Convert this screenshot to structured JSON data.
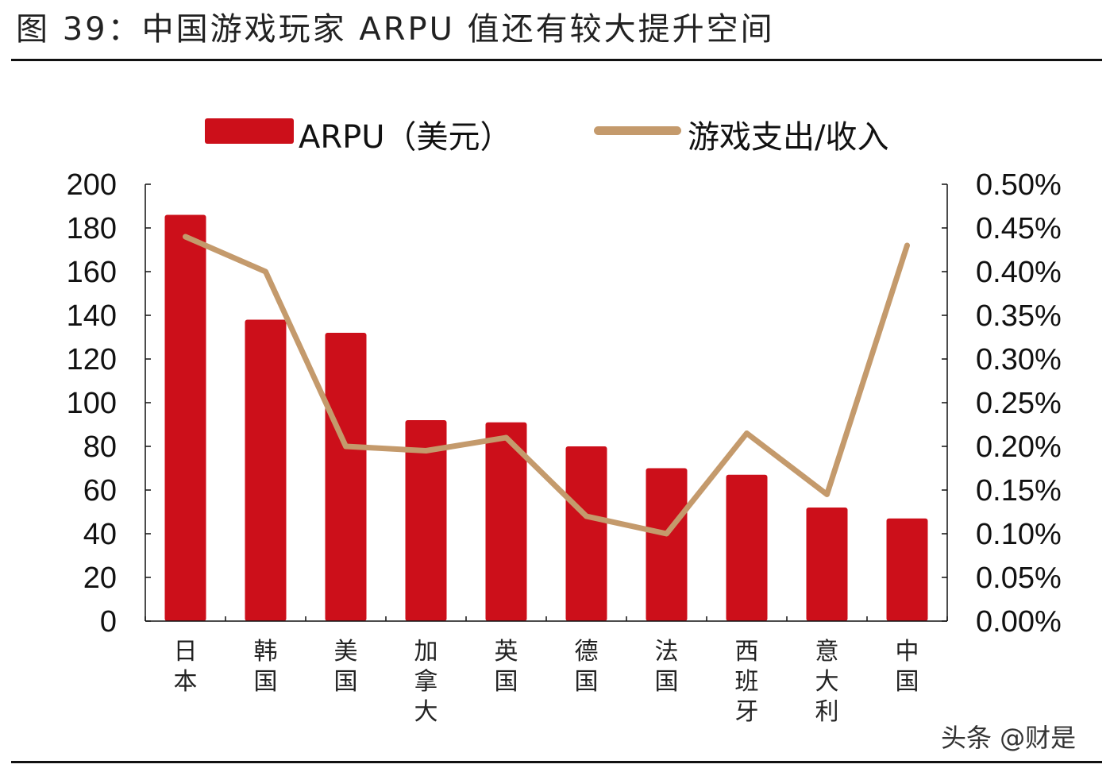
{
  "title": "图 39：中国游戏玩家 ARPU 值还有较大提升空间",
  "watermark": "头条 @财是",
  "colors": {
    "bar": "#cc0f1a",
    "line": "#c49a6c",
    "axis": "#111111"
  },
  "chart_data": {
    "type": "bar+line",
    "categories": [
      "日本",
      "韩国",
      "美国",
      "加拿大",
      "英国",
      "德国",
      "法国",
      "西班牙",
      "意大利",
      "中国"
    ],
    "series": [
      {
        "name": "ARPU（美元）",
        "type": "bar",
        "axis": "left",
        "values": [
          186,
          138,
          132,
          92,
          91,
          80,
          70,
          67,
          52,
          47
        ]
      },
      {
        "name": "游戏支出/收入",
        "type": "line",
        "axis": "right",
        "values": [
          0.44,
          0.4,
          0.2,
          0.195,
          0.21,
          0.12,
          0.1,
          0.215,
          0.145,
          0.43
        ]
      }
    ],
    "left_axis": {
      "ylim": [
        0,
        200
      ],
      "ticks": [
        "0",
        "20",
        "40",
        "60",
        "80",
        "100",
        "120",
        "140",
        "160",
        "180",
        "200"
      ]
    },
    "right_axis": {
      "ylim": [
        0,
        0.5
      ],
      "ticks": [
        "0.00%",
        "0.05%",
        "0.10%",
        "0.15%",
        "0.20%",
        "0.25%",
        "0.30%",
        "0.35%",
        "0.40%",
        "0.45%",
        "0.50%"
      ]
    },
    "legend": "top",
    "grid": false
  }
}
